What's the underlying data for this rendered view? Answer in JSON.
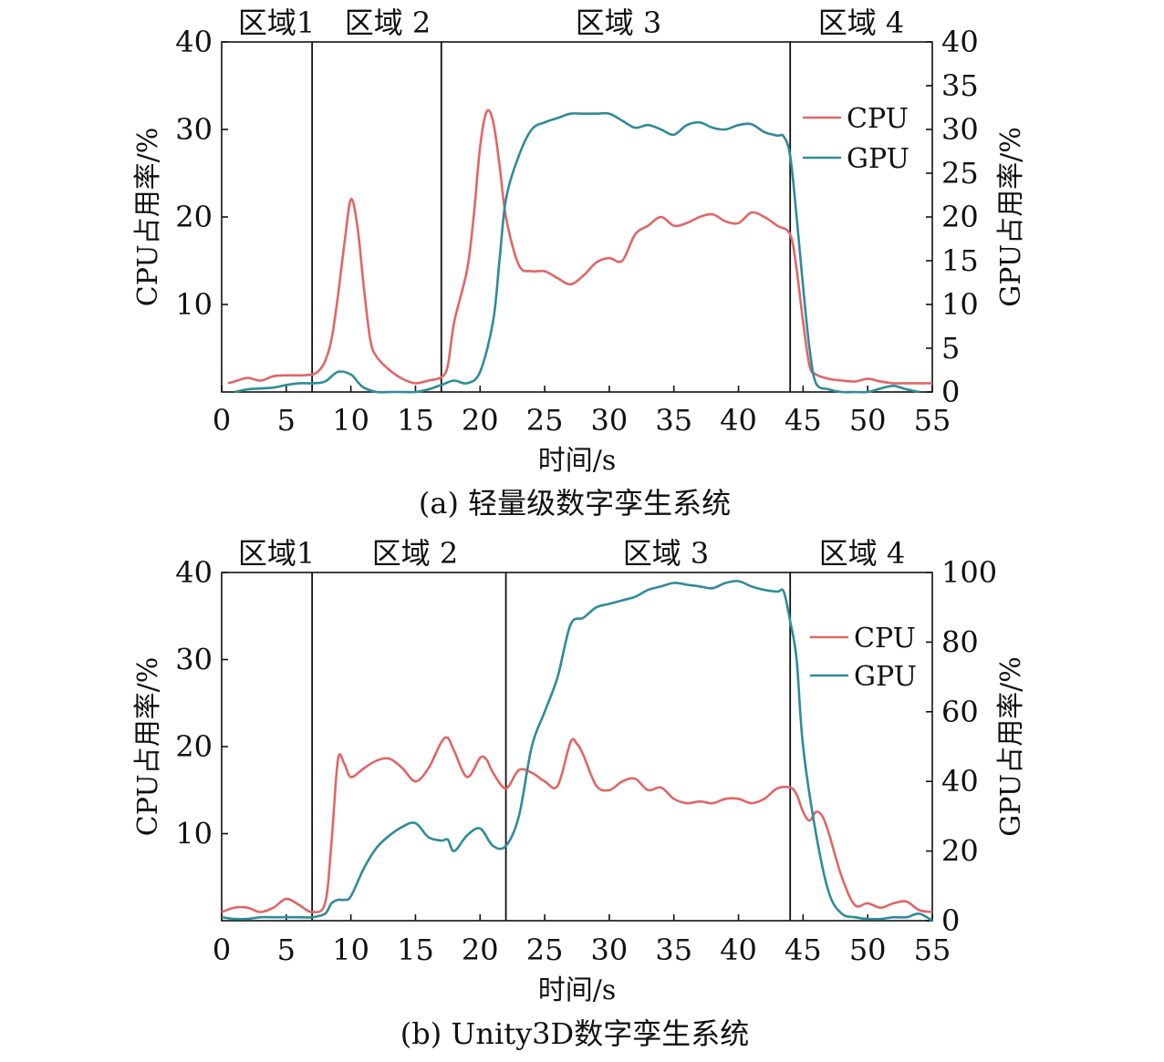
{
  "charts": [
    {
      "type": "line",
      "caption": "(a) 轻量级数字孪生系统",
      "xlabel": "时间/s",
      "ylabel_left": "CPU占用率/%",
      "ylabel_right": "GPU占用率/%",
      "xlim": [
        0,
        55
      ],
      "xticks": [
        0,
        5,
        10,
        15,
        20,
        25,
        30,
        35,
        40,
        45,
        50,
        55
      ],
      "ylim_left": [
        0,
        40
      ],
      "yticks_left": [
        10,
        20,
        30,
        40
      ],
      "ylim_right": [
        0,
        40
      ],
      "yticks_right": [
        0,
        5,
        10,
        15,
        20,
        25,
        30,
        35,
        40
      ],
      "legend": {
        "placement": "right",
        "items": [
          "CPU",
          "GPU"
        ]
      },
      "regions": [
        "区域1",
        "区域 2",
        "区域 3",
        "区域 4"
      ],
      "region_boundaries": [
        7,
        17,
        44
      ],
      "colors": {
        "CPU": "#e06666",
        "GPU": "#2e8b9a"
      },
      "series": [
        {
          "name": "CPU",
          "axis": "left",
          "x": [
            0.5,
            1,
            2,
            3,
            4,
            5,
            6,
            7,
            7.5,
            8,
            8.5,
            9,
            9.5,
            10,
            10.5,
            11,
            11.5,
            12,
            13,
            14,
            15,
            16,
            17,
            17.5,
            18,
            19,
            19.5,
            20,
            20.5,
            21,
            21.5,
            22,
            23,
            24,
            25,
            26,
            27,
            28,
            29,
            30,
            31,
            32,
            33,
            34,
            35,
            36,
            37,
            38,
            39,
            40,
            41,
            42,
            43,
            44,
            44.5,
            45,
            45.5,
            46,
            47,
            48,
            49,
            50,
            51,
            52,
            53,
            54,
            55
          ],
          "y": [
            1,
            1.2,
            1.6,
            1.3,
            1.8,
            1.9,
            1.9,
            2,
            2.4,
            3.5,
            6,
            11,
            17,
            22,
            19,
            12,
            6,
            4,
            2.5,
            1.5,
            1,
            1.3,
            1.7,
            3,
            8,
            14,
            20,
            28,
            32,
            31,
            26,
            20,
            14.5,
            13.8,
            13.8,
            13,
            12.3,
            13.3,
            14.8,
            15.3,
            15,
            18,
            19,
            20,
            19,
            19.3,
            20,
            20.3,
            19.5,
            19.3,
            20.5,
            20,
            19,
            18,
            14,
            8,
            3,
            2,
            1.5,
            1.3,
            1.2,
            1.5,
            1.2,
            1,
            1,
            1,
            1
          ]
        },
        {
          "name": "GPU",
          "axis": "right",
          "x": [
            1,
            2,
            3,
            4,
            5,
            6,
            7,
            8,
            9,
            10,
            10.5,
            11,
            12,
            13,
            14,
            15,
            16,
            17,
            18,
            19,
            20,
            21,
            21.5,
            22,
            23,
            24,
            25,
            26,
            27,
            28,
            29,
            30,
            31,
            32,
            33,
            34,
            35,
            36,
            37,
            38,
            39,
            40,
            41,
            42,
            43,
            43.5,
            44,
            44.5,
            45,
            45.5,
            46,
            47,
            48,
            49,
            50,
            51,
            52,
            53,
            54
          ],
          "y": [
            0,
            0.3,
            0.4,
            0.5,
            0.8,
            1,
            1,
            1.2,
            2.3,
            2,
            1.2,
            0.5,
            0,
            0,
            0,
            0,
            0.3,
            0.8,
            1.3,
            1,
            2.3,
            8,
            15,
            22,
            27,
            30,
            30.8,
            31.3,
            31.8,
            31.8,
            31.8,
            31.8,
            31,
            30.2,
            30.5,
            30,
            29.4,
            30.5,
            30.8,
            30.2,
            30,
            30.5,
            30.6,
            29.7,
            29.3,
            29.2,
            27,
            20,
            12,
            5,
            1,
            0.3,
            0,
            0,
            0,
            0.4,
            0.7,
            0.3,
            0
          ]
        }
      ]
    },
    {
      "type": "line",
      "caption": "(b) Unity3D数字孪生系统",
      "xlabel": "时间/s",
      "ylabel_left": "CPU占用率/%",
      "ylabel_right": "GPU占用率/%",
      "xlim": [
        0,
        55
      ],
      "xticks": [
        0,
        5,
        10,
        15,
        20,
        25,
        30,
        35,
        40,
        45,
        50,
        55
      ],
      "ylim_left": [
        0,
        40
      ],
      "yticks_left": [
        10,
        20,
        30,
        40
      ],
      "ylim_right": [
        0,
        100
      ],
      "yticks_right": [
        0,
        20,
        40,
        60,
        80,
        100
      ],
      "legend": {
        "placement": "right",
        "items": [
          "CPU",
          "GPU"
        ]
      },
      "regions": [
        "区域1",
        "区域 2",
        "区域 3",
        "区域 4"
      ],
      "region_boundaries": [
        7,
        22,
        44
      ],
      "colors": {
        "CPU": "#e06666",
        "GPU": "#2e8b9a"
      },
      "series": [
        {
          "name": "CPU",
          "axis": "left",
          "x": [
            0,
            1,
            2,
            3,
            4,
            5,
            6,
            7,
            8,
            8.5,
            9,
            9.5,
            10,
            11,
            12,
            13,
            14,
            15,
            16,
            17,
            17.5,
            18,
            19,
            20,
            20.5,
            21,
            22,
            23,
            24,
            25,
            26,
            27,
            27.5,
            28,
            29,
            30,
            31,
            32,
            33,
            34,
            35,
            36,
            37,
            38,
            39,
            40,
            41,
            42,
            43,
            44,
            44.5,
            45,
            45.5,
            46,
            46.5,
            47,
            48,
            49,
            50,
            51,
            52,
            53,
            54,
            55
          ],
          "y": [
            1,
            1.5,
            1.5,
            1,
            1.5,
            2.5,
            1.8,
            1,
            2,
            9,
            18.5,
            18,
            16.5,
            17.5,
            18.4,
            18.6,
            17.5,
            16,
            17.5,
            20.5,
            21,
            19.5,
            16.5,
            18.7,
            18.5,
            17,
            15.2,
            17.3,
            17,
            16,
            15.5,
            20.5,
            20.3,
            19,
            15.5,
            15,
            16,
            16.3,
            15,
            15.3,
            14,
            13.5,
            13.7,
            13.5,
            14,
            14,
            13.5,
            14,
            15.2,
            15.3,
            14.5,
            12.5,
            11.5,
            12.5,
            12,
            10,
            5,
            1.8,
            2,
            1.5,
            2,
            2.2,
            1.2,
            1
          ]
        },
        {
          "name": "GPU",
          "axis": "right",
          "x": [
            0,
            1,
            2,
            3,
            4,
            5,
            6,
            7,
            8,
            8.5,
            9,
            9.5,
            10,
            11,
            12,
            13,
            14,
            15,
            16,
            17,
            17.5,
            18,
            19,
            20,
            21,
            22,
            23,
            24,
            25,
            26,
            27,
            28,
            29,
            30,
            31,
            32,
            33,
            34,
            35,
            36,
            37,
            38,
            39,
            40,
            41,
            42,
            43,
            43.5,
            44,
            44.5,
            45,
            46,
            47,
            48,
            49,
            50,
            51,
            52,
            53,
            54,
            55
          ],
          "y": [
            1,
            0.5,
            0.5,
            1,
            1,
            1,
            1,
            1,
            2,
            5,
            6,
            6,
            7,
            15,
            21,
            24.5,
            27,
            28,
            24,
            23,
            23.3,
            20,
            24.5,
            26.5,
            21.5,
            21.5,
            30,
            50,
            60,
            70,
            85,
            87,
            90,
            91,
            92,
            93,
            95,
            96,
            97,
            96.5,
            96,
            95.5,
            97,
            97.5,
            96,
            95,
            94.5,
            94.5,
            86,
            75,
            50,
            25,
            8,
            2,
            1,
            0.5,
            0.5,
            1,
            1,
            2,
            0
          ]
        }
      ]
    }
  ]
}
